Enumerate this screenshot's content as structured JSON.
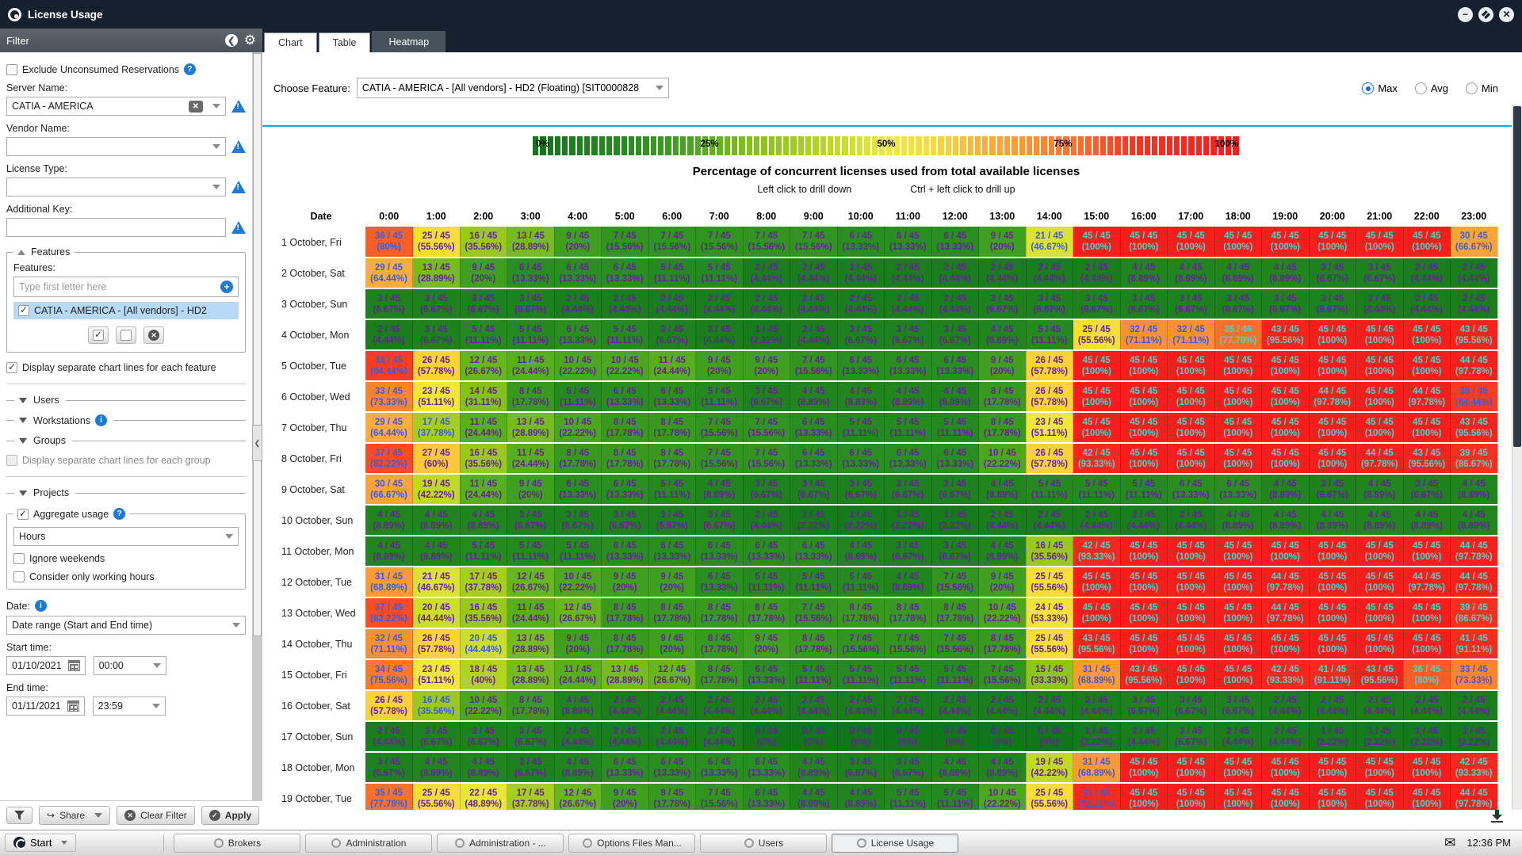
{
  "window": {
    "title": "License Usage",
    "time": "12:36 PM"
  },
  "sidebar": {
    "header": "Filter",
    "exclude_label": "Exclude Unconsumed Reservations",
    "server_name": {
      "label": "Server Name:",
      "value": "CATIA - AMERICA"
    },
    "vendor_name": {
      "label": "Vendor Name:",
      "value": ""
    },
    "license_type": {
      "label": "License Type:",
      "value": ""
    },
    "additional_key": {
      "label": "Additional Key:",
      "value": ""
    },
    "features": {
      "legend": "Features",
      "inner_label": "Features:",
      "placeholder": "Type first letter here",
      "selected_item": "CATIA - AMERICA - [All vendors] - HD2"
    },
    "display_lines_feature": "Display separate chart lines for each feature",
    "sections": [
      {
        "label": "Users"
      },
      {
        "label": "Workstations"
      },
      {
        "label": "Groups"
      },
      {
        "label": "Projects"
      }
    ],
    "display_lines_group": "Display separate chart lines for each group",
    "aggregate": {
      "legend": "Aggregate usage",
      "period_value": "Hours",
      "ignore_weekends": "Ignore weekends",
      "working_hours": "Consider only working hours"
    },
    "date": {
      "label": "Date:",
      "range_value": "Date range (Start and End time)",
      "start_label": "Start time:",
      "start_date": "01/10/2021",
      "start_time": "00:00",
      "end_label": "End time:",
      "end_date": "01/11/2021",
      "end_time": "23:59"
    },
    "actions": {
      "share": "Share",
      "clear": "Clear Filter",
      "apply": "Apply"
    }
  },
  "tabs": [
    {
      "label": "Chart",
      "active": false
    },
    {
      "label": "Table",
      "active": false
    },
    {
      "label": "Heatmap",
      "active": true
    }
  ],
  "feature_bar": {
    "label": "Choose Feature:",
    "value": "CATIA - AMERICA - [All vendors] - HD2 (Floating) [SIT0000828"
  },
  "stat_modes": [
    {
      "label": "Max",
      "selected": true
    },
    {
      "label": "Avg",
      "selected": false
    },
    {
      "label": "Min",
      "selected": false
    }
  ],
  "chart_data": {
    "type": "heatmap",
    "title": "Percentage of concurrent licenses used from total available licenses",
    "subtitle_left": "Left click to drill down",
    "subtitle_right": "Ctrl + left click to drill up",
    "legend_labels": [
      "0%",
      "25%",
      "50%",
      "75%",
      "100%"
    ],
    "date_header": "Date",
    "columns": [
      "0:00",
      "1:00",
      "2:00",
      "3:00",
      "4:00",
      "5:00",
      "6:00",
      "7:00",
      "8:00",
      "9:00",
      "10:00",
      "11:00",
      "12:00",
      "13:00",
      "14:00",
      "15:00",
      "16:00",
      "17:00",
      "18:00",
      "19:00",
      "20:00",
      "21:00",
      "22:00",
      "23:00"
    ],
    "total_licenses": 45,
    "rows": [
      {
        "date": "1 October, Fri",
        "counts": [
          36,
          25,
          16,
          13,
          9,
          7,
          7,
          7,
          7,
          7,
          6,
          6,
          6,
          9,
          21,
          45,
          45,
          45,
          45,
          45,
          45,
          45,
          45,
          30
        ]
      },
      {
        "date": "2 October, Sat",
        "counts": [
          29,
          13,
          9,
          6,
          6,
          6,
          5,
          5,
          2,
          2,
          2,
          2,
          2,
          2,
          2,
          2,
          4,
          4,
          4,
          4,
          3,
          3,
          2,
          2
        ]
      },
      {
        "date": "3 October, Sun",
        "counts": [
          3,
          3,
          3,
          3,
          2,
          2,
          2,
          2,
          2,
          2,
          2,
          2,
          2,
          3,
          3,
          3,
          3,
          3,
          3,
          3,
          3,
          2,
          2,
          2
        ]
      },
      {
        "date": "4 October, Mon",
        "counts": [
          2,
          3,
          5,
          5,
          6,
          5,
          3,
          2,
          1,
          2,
          3,
          3,
          3,
          4,
          5,
          25,
          32,
          32,
          35,
          43,
          45,
          45,
          45,
          43
        ]
      },
      {
        "date": "5 October, Tue",
        "counts": [
          38,
          26,
          12,
          11,
          10,
          10,
          11,
          9,
          9,
          7,
          6,
          6,
          6,
          9,
          26,
          45,
          45,
          45,
          45,
          45,
          45,
          45,
          45,
          44
        ]
      },
      {
        "date": "6 October, Wed",
        "counts": [
          33,
          23,
          14,
          8,
          5,
          6,
          6,
          5,
          3,
          4,
          4,
          4,
          4,
          8,
          26,
          45,
          45,
          45,
          45,
          45,
          44,
          45,
          44,
          38
        ]
      },
      {
        "date": "7 October, Thu",
        "counts": [
          29,
          17,
          11,
          13,
          10,
          8,
          8,
          7,
          7,
          6,
          5,
          5,
          5,
          8,
          23,
          45,
          45,
          45,
          45,
          45,
          45,
          45,
          45,
          43
        ]
      },
      {
        "date": "8 October, Fri",
        "counts": [
          37,
          27,
          16,
          11,
          8,
          8,
          8,
          7,
          7,
          6,
          6,
          6,
          6,
          10,
          26,
          42,
          45,
          45,
          45,
          45,
          45,
          44,
          43,
          39
        ]
      },
      {
        "date": "9 October, Sat",
        "counts": [
          30,
          19,
          11,
          9,
          6,
          6,
          5,
          4,
          3,
          3,
          3,
          3,
          3,
          4,
          5,
          5,
          5,
          6,
          6,
          4,
          3,
          4,
          3,
          4
        ]
      },
      {
        "date": "10 October, Sun",
        "counts": [
          4,
          4,
          4,
          3,
          3,
          3,
          3,
          3,
          2,
          1,
          1,
          1,
          1,
          2,
          2,
          2,
          2,
          2,
          4,
          4,
          4,
          4,
          4,
          4
        ]
      },
      {
        "date": "11 October, Mon",
        "counts": [
          4,
          4,
          5,
          5,
          5,
          6,
          6,
          6,
          6,
          6,
          4,
          3,
          3,
          4,
          16,
          42,
          45,
          45,
          45,
          45,
          45,
          45,
          45,
          44
        ]
      },
      {
        "date": "12 October, Tue",
        "counts": [
          31,
          21,
          17,
          12,
          10,
          9,
          9,
          6,
          5,
          5,
          5,
          4,
          7,
          9,
          25,
          45,
          45,
          45,
          45,
          44,
          45,
          45,
          44,
          44
        ]
      },
      {
        "date": "13 October, Wed",
        "counts": [
          37,
          20,
          16,
          11,
          12,
          8,
          8,
          8,
          8,
          7,
          8,
          8,
          8,
          10,
          24,
          45,
          45,
          45,
          45,
          44,
          45,
          45,
          45,
          39
        ]
      },
      {
        "date": "14 October, Thu",
        "counts": [
          32,
          26,
          20,
          13,
          9,
          8,
          9,
          8,
          9,
          8,
          7,
          7,
          7,
          8,
          25,
          43,
          45,
          45,
          45,
          45,
          45,
          45,
          45,
          41
        ]
      },
      {
        "date": "15 October, Fri",
        "counts": [
          34,
          23,
          18,
          13,
          11,
          13,
          12,
          8,
          6,
          5,
          5,
          5,
          5,
          7,
          15,
          31,
          43,
          45,
          45,
          42,
          41,
          43,
          36,
          33
        ]
      },
      {
        "date": "16 October, Sat",
        "counts": [
          26,
          16,
          10,
          8,
          4,
          2,
          2,
          2,
          2,
          2,
          2,
          2,
          2,
          2,
          2,
          2,
          3,
          3,
          3,
          2,
          2,
          2,
          2,
          2
        ]
      },
      {
        "date": "17 October, Sun",
        "counts": [
          2,
          3,
          3,
          3,
          2,
          2,
          2,
          2,
          0,
          0,
          0,
          0,
          0,
          0,
          0,
          1,
          2,
          3,
          2,
          2,
          1,
          1,
          1,
          1
        ]
      },
      {
        "date": "18 October, Mon",
        "counts": [
          3,
          4,
          4,
          3,
          4,
          6,
          6,
          6,
          6,
          4,
          3,
          3,
          4,
          4,
          19,
          31,
          45,
          45,
          45,
          45,
          45,
          45,
          45,
          42
        ]
      },
      {
        "date": "19 October, Tue",
        "counts": [
          35,
          25,
          22,
          17,
          12,
          9,
          8,
          7,
          6,
          4,
          4,
          5,
          5,
          10,
          25,
          41,
          45,
          45,
          45,
          45,
          45,
          45,
          45,
          44
        ]
      }
    ],
    "text_colors": {
      "purple": "#68209b",
      "blue": "#3a5bdd",
      "cyan": "#3ed8d2"
    },
    "text_blue_overrides": [
      [
        0,
        14
      ],
      [
        6,
        1
      ],
      [
        13,
        2
      ],
      [
        15,
        1
      ],
      [
        18,
        15
      ]
    ],
    "text_cyan_overrides": [
      [
        3,
        18
      ],
      [
        14,
        22
      ]
    ],
    "gradient_stops": [
      [
        0,
        "#0f7619"
      ],
      [
        5,
        "#1a7e1c"
      ],
      [
        13,
        "#278d1f"
      ],
      [
        20,
        "#3fa01f"
      ],
      [
        25,
        "#5ab11c"
      ],
      [
        30,
        "#7fbf1e"
      ],
      [
        36,
        "#9cc91d"
      ],
      [
        40,
        "#b4d31f"
      ],
      [
        45,
        "#cfdf2e"
      ],
      [
        50,
        "#efe93c"
      ],
      [
        56,
        "#f8dc3a"
      ],
      [
        60,
        "#fcc83b"
      ],
      [
        64,
        "#fcae3a"
      ],
      [
        69,
        "#fb9b35"
      ],
      [
        73,
        "#fb8630"
      ],
      [
        78,
        "#f96f29"
      ],
      [
        82,
        "#fa4c25"
      ],
      [
        86,
        "#f93120"
      ],
      [
        100,
        "#f91d1b"
      ]
    ]
  },
  "taskbar": {
    "start_label": "Start",
    "buttons": [
      {
        "label": "Brokers",
        "active": false
      },
      {
        "label": "Administration",
        "active": false
      },
      {
        "label": "Administration - ...",
        "active": false
      },
      {
        "label": "Options Files Man...",
        "active": false
      },
      {
        "label": "Users",
        "active": false
      },
      {
        "label": "License Usage",
        "active": true
      }
    ]
  }
}
